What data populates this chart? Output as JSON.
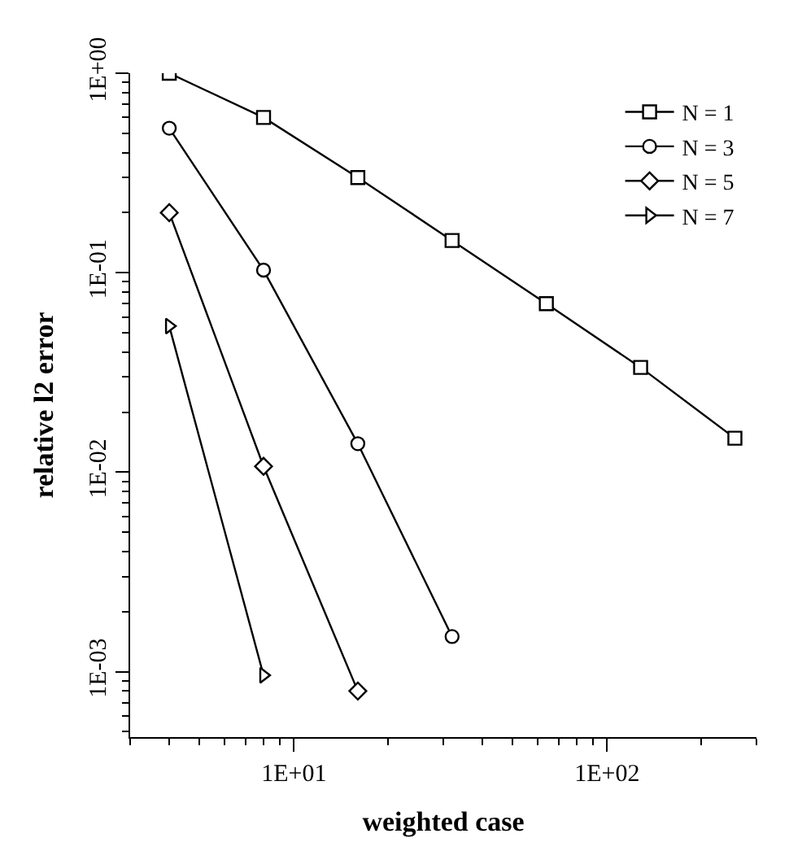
{
  "chart_data": {
    "type": "line",
    "xlabel": "weighted case",
    "ylabel": "relative l2 error",
    "log": "xy",
    "legend": "top right",
    "line_style": "solid",
    "xlim": [
      3,
      300
    ],
    "xticks": [
      {
        "value": 10,
        "label": "1E+01"
      },
      {
        "value": 100,
        "label": "1E+02"
      }
    ],
    "ylim": [
      0.00047,
      1
    ],
    "yticks": [
      {
        "value": 0.001,
        "label": "1E-03"
      },
      {
        "value": 0.01,
        "label": "1E-02"
      },
      {
        "value": 0.1,
        "label": "1E-01"
      },
      {
        "value": 1,
        "label": "1E+00"
      }
    ],
    "series": [
      {
        "name": "N = 1",
        "color": "#000000",
        "marker": "square",
        "x": [
          4,
          8,
          16,
          32,
          64,
          128,
          256
        ],
        "values": [
          1.0,
          0.6,
          0.3,
          0.145,
          0.07,
          0.0335,
          0.0148
        ]
      },
      {
        "name": "N = 3",
        "color": "#000000",
        "marker": "circle",
        "x": [
          4,
          8,
          16,
          32
        ],
        "values": [
          0.53,
          0.103,
          0.0139,
          0.0015
        ]
      },
      {
        "name": "N = 5",
        "color": "#000000",
        "marker": "diamond",
        "x": [
          4,
          8,
          16
        ],
        "values": [
          0.2,
          0.0107,
          0.0008
        ]
      },
      {
        "name": "N = 7",
        "color": "#000000",
        "marker": "triangle",
        "x": [
          4,
          8
        ],
        "values": [
          0.054,
          0.00096
        ]
      }
    ]
  }
}
